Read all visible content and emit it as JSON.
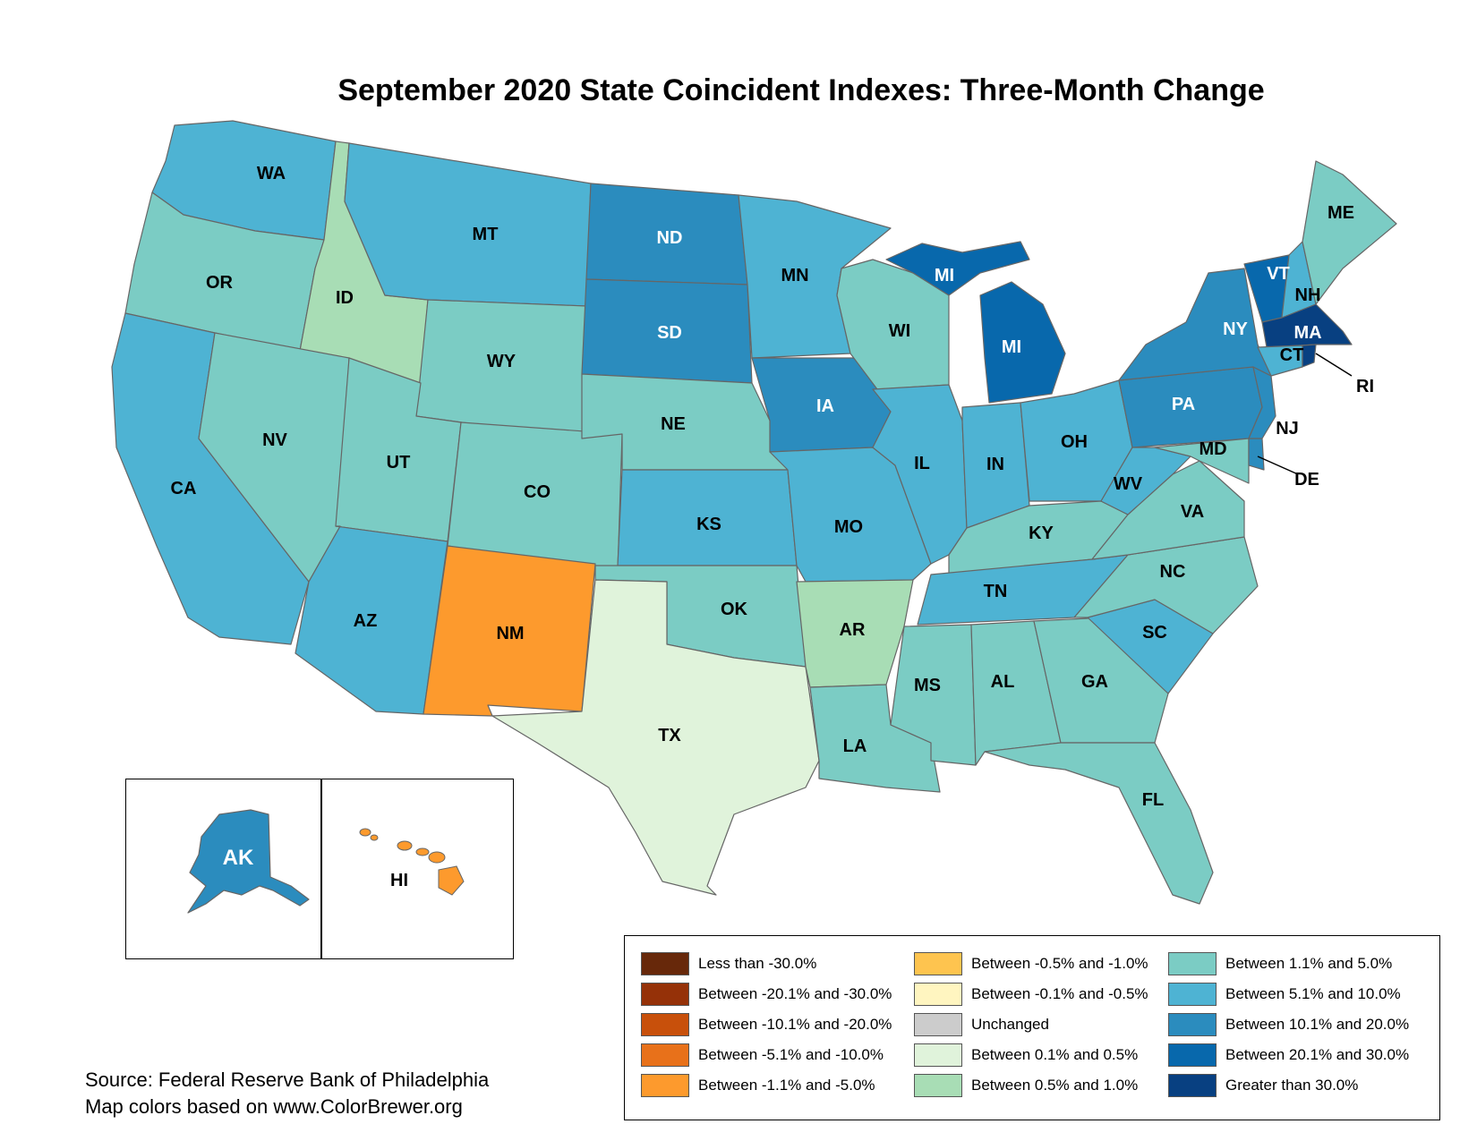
{
  "title": "September 2020 State Coincident Indexes: Three-Month Change",
  "colors": {
    "less_than_neg30": "#67280a",
    "neg20_neg30": "#953108",
    "neg10_neg20": "#c8500b",
    "neg5_neg10": "#e8711a",
    "neg1_neg5": "#fd9a2d",
    "neg05_neg1": "#fec44f",
    "neg01_neg05": "#fff5c0",
    "unchanged": "#cccccc",
    "pos01_05": "#e0f3db",
    "pos05_10": "#a8ddb5",
    "pos1_5": "#7bccc4",
    "pos5_10": "#4eb3d3",
    "pos10_20": "#2b8cbe",
    "pos20_30": "#0868ac",
    "gt30": "#084081"
  },
  "states": {
    "WA": "WA",
    "OR": "OR",
    "CA": "CA",
    "ID": "ID",
    "NV": "NV",
    "MT": "MT",
    "WY": "WY",
    "UT": "UT",
    "AZ": "AZ",
    "CO": "CO",
    "NM": "NM",
    "ND": "ND",
    "SD": "SD",
    "NE": "NE",
    "KS": "KS",
    "OK": "OK",
    "TX": "TX",
    "MN": "MN",
    "IA": "IA",
    "MO": "MO",
    "AR": "AR",
    "LA": "LA",
    "WI": "WI",
    "IL": "IL",
    "MI": "MI",
    "MI2": "MI",
    "IN": "IN",
    "OH": "OH",
    "KY": "KY",
    "TN": "TN",
    "MS": "MS",
    "AL": "AL",
    "GA": "GA",
    "FL": "FL",
    "SC": "SC",
    "NC": "NC",
    "VA": "VA",
    "WV": "WV",
    "PA": "PA",
    "NY": "NY",
    "VT": "VT",
    "NH": "NH",
    "ME": "ME",
    "MA": "MA",
    "CT": "CT",
    "RI": "RI",
    "NJ": "NJ",
    "DE": "DE",
    "MD": "MD",
    "AK": "AK",
    "HI": "HI"
  },
  "legend": [
    {
      "label": "Less than -30.0%",
      "color": "#67280a"
    },
    {
      "label": "Between -20.1% and -30.0%",
      "color": "#953108"
    },
    {
      "label": "Between -10.1% and -20.0%",
      "color": "#c8500b"
    },
    {
      "label": "Between -5.1% and -10.0%",
      "color": "#e8711a"
    },
    {
      "label": "Between -1.1% and -5.0%",
      "color": "#fd9a2d"
    },
    {
      "label": "Between -0.5% and -1.0%",
      "color": "#fec44f"
    },
    {
      "label": "Between -0.1% and -0.5%",
      "color": "#fff5c0"
    },
    {
      "label": "Unchanged",
      "color": "#cccccc"
    },
    {
      "label": "Between 0.1% and 0.5%",
      "color": "#e0f3db"
    },
    {
      "label": "Between 0.5% and 1.0%",
      "color": "#a8ddb5"
    },
    {
      "label": "Between 1.1% and 5.0%",
      "color": "#7bccc4"
    },
    {
      "label": "Between 5.1% and 10.0%",
      "color": "#4eb3d3"
    },
    {
      "label": "Between 10.1% and 20.0%",
      "color": "#2b8cbe"
    },
    {
      "label": "Between 20.1% and 30.0%",
      "color": "#0868ac"
    },
    {
      "label": "Greater than 30.0%",
      "color": "#084081"
    }
  ],
  "source": {
    "line1": "Source: Federal Reserve Bank of Philadelphia",
    "line2": "Map colors based on www.ColorBrewer.org"
  }
}
